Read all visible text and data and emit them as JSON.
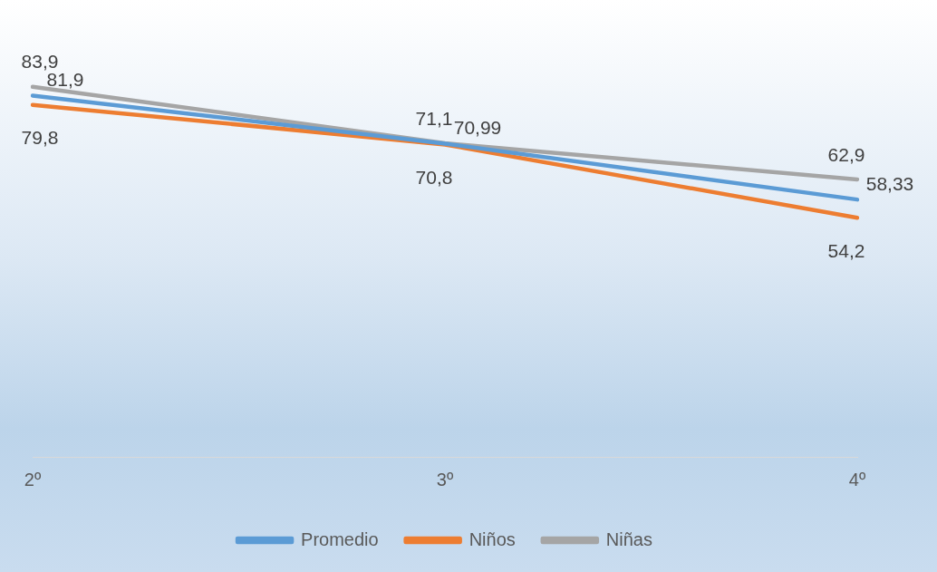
{
  "chart_data": {
    "type": "line",
    "categories": [
      "2º",
      "3º",
      "4º"
    ],
    "series": [
      {
        "name": "Promedio",
        "color": "#5b9bd5",
        "values": [
          81.9,
          70.99,
          58.33
        ],
        "value_labels": [
          "81,9",
          "70,99",
          "58,33"
        ]
      },
      {
        "name": "Niños",
        "color": "#ed7d31",
        "values": [
          79.8,
          70.8,
          54.2
        ],
        "value_labels": [
          "79,8",
          "70,8",
          "54,2"
        ]
      },
      {
        "name": "Niñas",
        "color": "#a5a5a5",
        "values": [
          83.9,
          71.1,
          62.9
        ],
        "value_labels": [
          "83,9",
          "71,1",
          "62,9"
        ]
      }
    ],
    "tick_labels": "x",
    "legend": "bottom",
    "grid": false,
    "marker": "none",
    "line_style": "solid"
  }
}
